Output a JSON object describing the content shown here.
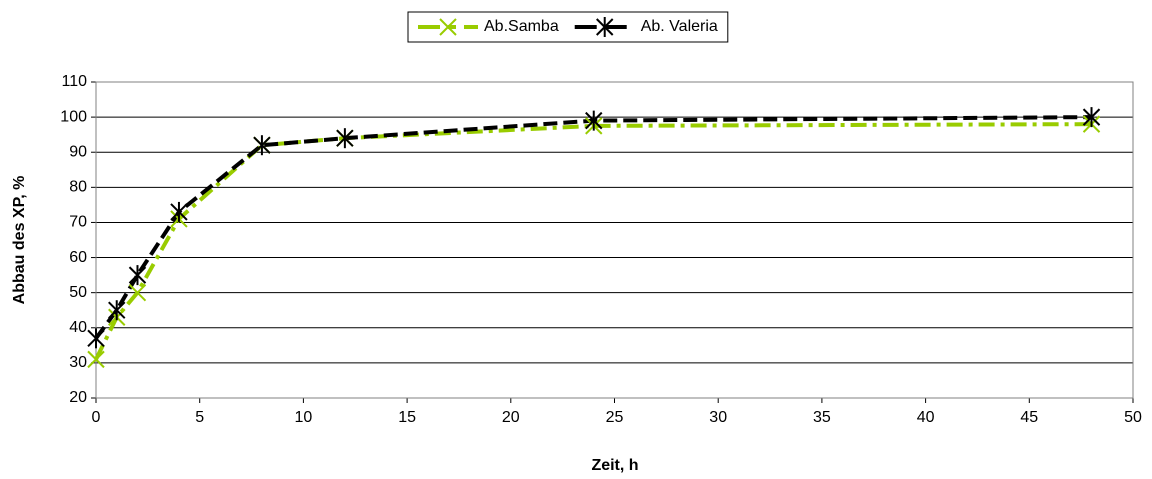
{
  "chart_data": {
    "type": "line",
    "x_label": "Zeit, h",
    "y_label": "Abbau des XP, %",
    "x": [
      0,
      1,
      2,
      4,
      8,
      12,
      24,
      48
    ],
    "series": [
      {
        "name": "Ab.Samba",
        "color": "#99cc00",
        "marker": "x",
        "values": [
          31,
          43,
          50,
          71,
          92,
          94,
          97.5,
          98
        ]
      },
      {
        "name": "Ab. Valeria",
        "color": "#000000",
        "marker": "asterisk",
        "values": [
          37,
          45,
          55,
          73,
          92,
          94,
          99,
          100
        ]
      }
    ],
    "xlim": [
      0,
      50
    ],
    "xticks": [
      0,
      5,
      10,
      15,
      20,
      25,
      30,
      35,
      40,
      45,
      50
    ],
    "ylim": [
      20,
      110
    ],
    "yticks": [
      20,
      30,
      40,
      50,
      60,
      70,
      80,
      90,
      100,
      110
    ],
    "grid": true,
    "legend": "top"
  }
}
